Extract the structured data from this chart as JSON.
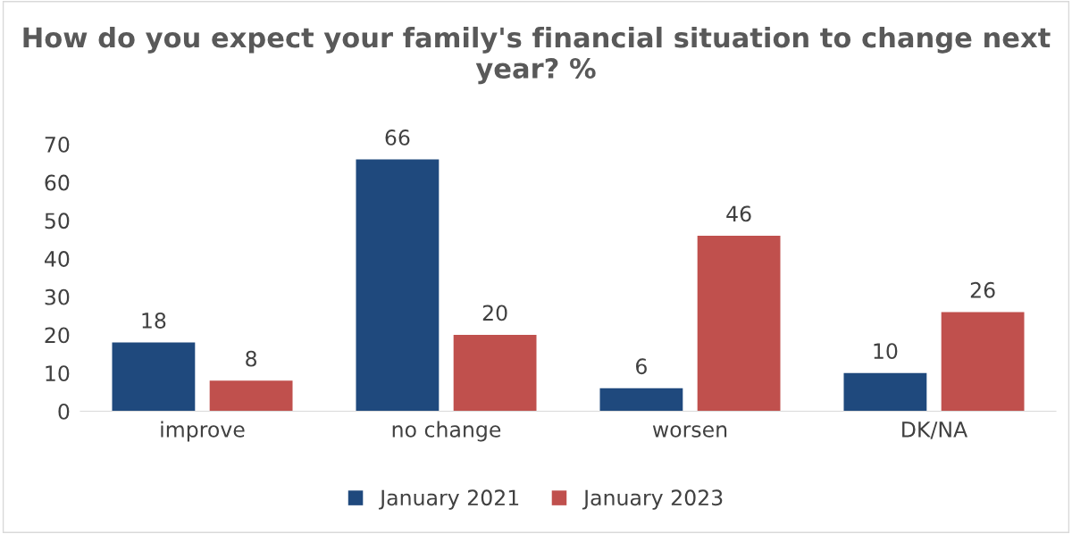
{
  "chart_data": {
    "type": "bar",
    "title": "How do you expect your family's financial situation to change next year? %",
    "categories": [
      "improve",
      "no change",
      "worsen",
      "DK/NA"
    ],
    "series": [
      {
        "name": "January 2021",
        "color": "#1f497d",
        "values": [
          18,
          66,
          6,
          10
        ]
      },
      {
        "name": "January 2023",
        "color": "#c0504d",
        "values": [
          8,
          20,
          46,
          26
        ]
      }
    ],
    "ylim": [
      0,
      70
    ],
    "yticks": [
      0,
      10,
      20,
      30,
      40,
      50,
      60,
      70
    ],
    "grid": false,
    "legend": "bottom",
    "data_labels": true
  }
}
